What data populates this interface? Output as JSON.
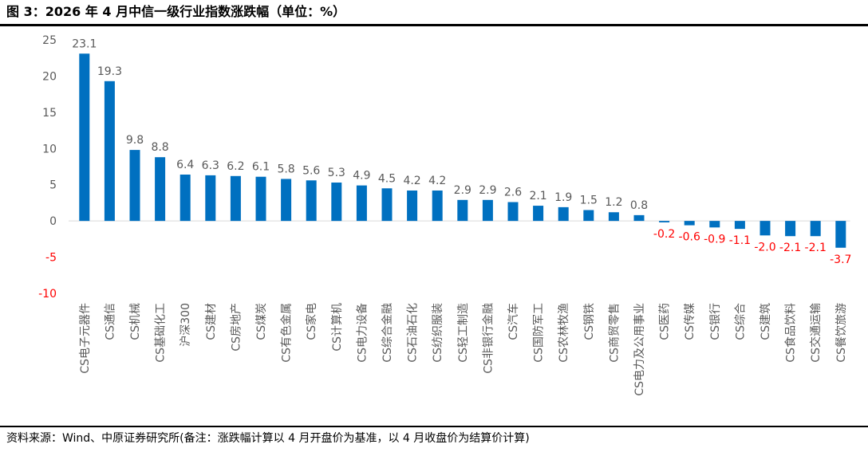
{
  "title": "图 3：2026 年 4 月中信一级行业指数涨跌幅（单位：%）",
  "source": "资料来源：Wind、中原证券研究所(备注：涨跌幅计算以 4 月开盘价为基准，以 4 月收盘价为结算价计算)",
  "colors": {
    "bar": "#0070C0",
    "negative_label": "#FF0000",
    "text": "#595959",
    "axis": "#D9D9D9"
  },
  "chart_data": {
    "type": "bar",
    "title": "",
    "xlabel": "",
    "ylabel": "",
    "ylim": [
      -10,
      25
    ],
    "yticks": [
      25,
      20,
      15,
      10,
      5,
      0,
      -5,
      -10
    ],
    "grid": false,
    "legend": "none",
    "categories": [
      "CS电子元器件",
      "CS通信",
      "CS机械",
      "CS基础化工",
      "沪深300",
      "CS建材",
      "CS房地产",
      "CS煤炭",
      "CS有色金属",
      "CS家电",
      "CS计算机",
      "CS电力设备",
      "CS综合金融",
      "CS石油石化",
      "CS纺织服装",
      "CS轻工制造",
      "CS非银行金融",
      "CS汽车",
      "CS国防军工",
      "CS农林牧渔",
      "CS钢铁",
      "CS商贸零售",
      "CS电力及公用事业",
      "CS医药",
      "CS传媒",
      "CS银行",
      "CS综合",
      "CS建筑",
      "CS食品饮料",
      "CS交通运输",
      "CS餐饮旅游"
    ],
    "values": [
      23.1,
      19.3,
      9.8,
      8.8,
      6.4,
      6.3,
      6.2,
      6.1,
      5.8,
      5.6,
      5.3,
      4.9,
      4.5,
      4.2,
      4.2,
      2.9,
      2.9,
      2.6,
      2.1,
      1.9,
      1.5,
      1.2,
      0.8,
      -0.2,
      -0.6,
      -0.9,
      -1.1,
      -2.0,
      -2.1,
      -2.1,
      -3.7
    ],
    "value_labels": [
      "23.1",
      "19.3",
      "9.8",
      "8.8",
      "6.4",
      "6.3",
      "6.2",
      "6.1",
      "5.8",
      "5.6",
      "5.3",
      "4.9",
      "4.5",
      "4.2",
      "4.2",
      "2.9",
      "2.9",
      "2.6",
      "2.1",
      "1.9",
      "1.5",
      "1.2",
      "0.8",
      "-0.2",
      "-0.6",
      "-0.9",
      "-1.1",
      "-2.0",
      "-2.1",
      "-2.1",
      "-3.7"
    ]
  }
}
